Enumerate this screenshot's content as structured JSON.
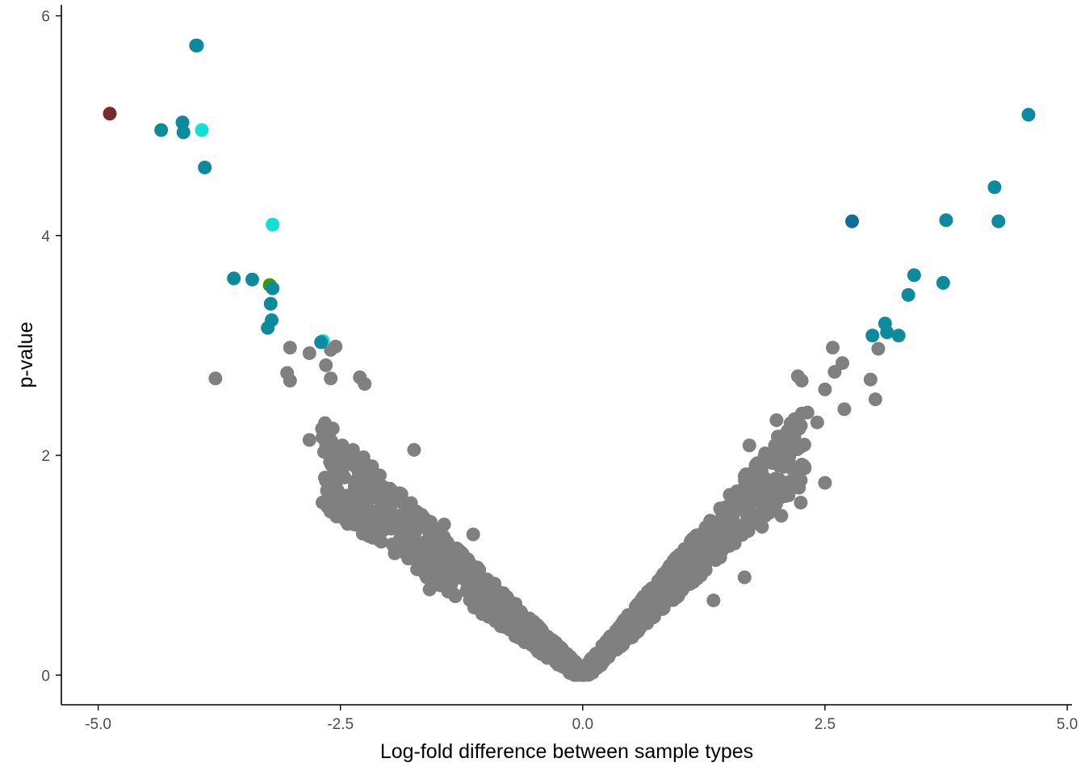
{
  "chart_data": {
    "type": "scatter",
    "title": "",
    "xlabel": "Log-fold difference between sample types",
    "ylabel": "p-value",
    "xlim": [
      -5.38,
      5.05
    ],
    "ylim": [
      -0.27,
      6.1
    ],
    "xticks": [
      -5.0,
      -2.5,
      0.0,
      2.5,
      5.0
    ],
    "xtick_labels": [
      "-5.0",
      "-2.5",
      "0.0",
      "2.5",
      "5.0"
    ],
    "yticks": [
      0,
      2,
      4,
      6
    ],
    "ytick_labels": [
      "0",
      "2",
      "4",
      "6"
    ],
    "grid": false,
    "legend": "none",
    "colors": {
      "background_points": "#808080",
      "highlight_teal": "#0E8A9E",
      "highlight_teal_dark": "#127E99",
      "highlight_cyan": "#14E0D0",
      "highlight_red": "#7A2B2B",
      "highlight_green": "#3C9A07",
      "highlight_blue": "#0D6E99"
    },
    "highlighted_points": [
      {
        "x": -4.88,
        "y": 5.11,
        "color": "#7A2B2B"
      },
      {
        "x": -4.35,
        "y": 4.96,
        "color": "#0E8A9E"
      },
      {
        "x": -4.13,
        "y": 5.03,
        "color": "#0E8A9E"
      },
      {
        "x": -4.12,
        "y": 4.94,
        "color": "#0E8A9E"
      },
      {
        "x": -3.99,
        "y": 5.73,
        "color": "#127E99"
      },
      {
        "x": -3.98,
        "y": 5.73,
        "color": "#0E8A9E"
      },
      {
        "x": -3.93,
        "y": 4.96,
        "color": "#14E0D0"
      },
      {
        "x": -3.9,
        "y": 4.62,
        "color": "#0E8A9E"
      },
      {
        "x": -3.6,
        "y": 3.61,
        "color": "#0E8A9E"
      },
      {
        "x": -3.41,
        "y": 3.6,
        "color": "#0E8A9E"
      },
      {
        "x": -3.23,
        "y": 3.55,
        "color": "#3C9A07"
      },
      {
        "x": -3.2,
        "y": 4.1,
        "color": "#14E0D0"
      },
      {
        "x": -3.2,
        "y": 3.52,
        "color": "#0E8A9E"
      },
      {
        "x": -3.22,
        "y": 3.38,
        "color": "#0E8A9E"
      },
      {
        "x": -3.21,
        "y": 3.23,
        "color": "#0E8A9E"
      },
      {
        "x": -3.25,
        "y": 3.16,
        "color": "#0E8A9E"
      },
      {
        "x": -2.68,
        "y": 3.04,
        "color": "#14E0D0"
      },
      {
        "x": -2.7,
        "y": 3.03,
        "color": "#0E8A9E"
      },
      {
        "x": 2.78,
        "y": 4.13,
        "color": "#0D6E99"
      },
      {
        "x": 2.99,
        "y": 3.09,
        "color": "#0E8A9E"
      },
      {
        "x": 3.12,
        "y": 3.2,
        "color": "#0E8A9E"
      },
      {
        "x": 3.14,
        "y": 3.12,
        "color": "#0E8A9E"
      },
      {
        "x": 3.26,
        "y": 3.09,
        "color": "#0E8A9E"
      },
      {
        "x": 3.36,
        "y": 3.46,
        "color": "#0E8A9E"
      },
      {
        "x": 3.42,
        "y": 3.64,
        "color": "#0E8A9E"
      },
      {
        "x": 3.72,
        "y": 3.57,
        "color": "#0E8A9E"
      },
      {
        "x": 3.75,
        "y": 4.14,
        "color": "#0E8A9E"
      },
      {
        "x": 4.25,
        "y": 4.44,
        "color": "#0E8A9E"
      },
      {
        "x": 4.29,
        "y": 4.13,
        "color": "#0E8A9E"
      },
      {
        "x": 4.6,
        "y": 5.1,
        "color": "#0E8A9E"
      }
    ],
    "background_points_notable": [
      {
        "x": -3.79,
        "y": 2.7
      },
      {
        "x": -3.02,
        "y": 2.98
      },
      {
        "x": -3.05,
        "y": 2.75
      },
      {
        "x": -3.02,
        "y": 2.68
      },
      {
        "x": -2.82,
        "y": 2.93
      },
      {
        "x": -2.82,
        "y": 2.14
      },
      {
        "x": -2.6,
        "y": 2.96
      },
      {
        "x": -2.55,
        "y": 2.99
      },
      {
        "x": -2.65,
        "y": 2.82
      },
      {
        "x": -2.6,
        "y": 2.7
      },
      {
        "x": -2.3,
        "y": 2.71
      },
      {
        "x": -2.25,
        "y": 2.65
      },
      {
        "x": -1.74,
        "y": 2.05
      },
      {
        "x": -1.43,
        "y": 1.37
      },
      {
        "x": -1.13,
        "y": 1.28
      },
      {
        "x": -1.58,
        "y": 0.78
      },
      {
        "x": 1.72,
        "y": 2.09
      },
      {
        "x": 2.0,
        "y": 2.32
      },
      {
        "x": 2.22,
        "y": 2.72
      },
      {
        "x": 2.26,
        "y": 2.68
      },
      {
        "x": 2.32,
        "y": 2.39
      },
      {
        "x": 2.42,
        "y": 2.3
      },
      {
        "x": 2.5,
        "y": 2.6
      },
      {
        "x": 2.58,
        "y": 2.98
      },
      {
        "x": 2.6,
        "y": 2.76
      },
      {
        "x": 2.68,
        "y": 2.84
      },
      {
        "x": 2.7,
        "y": 2.42
      },
      {
        "x": 2.97,
        "y": 2.69
      },
      {
        "x": 3.02,
        "y": 2.51
      },
      {
        "x": 3.05,
        "y": 2.97
      },
      {
        "x": 2.25,
        "y": 1.57
      },
      {
        "x": 2.5,
        "y": 1.75
      },
      {
        "x": 1.67,
        "y": 0.89
      },
      {
        "x": 1.35,
        "y": 0.68
      },
      {
        "x": 1.85,
        "y": 1.35
      },
      {
        "x": 2.05,
        "y": 1.45
      }
    ],
    "background_cloud": {
      "description": "dense V-shaped band of non-significant points",
      "left_arm": {
        "x_range": [
          -2.7,
          0.0
        ],
        "y_per_unit_x": -0.72,
        "y_max": 2.7
      },
      "right_arm": {
        "x_range": [
          0.0,
          2.3
        ],
        "y_per_unit_x": 0.92,
        "y_max": 2.6
      },
      "n_points": 1400
    }
  }
}
